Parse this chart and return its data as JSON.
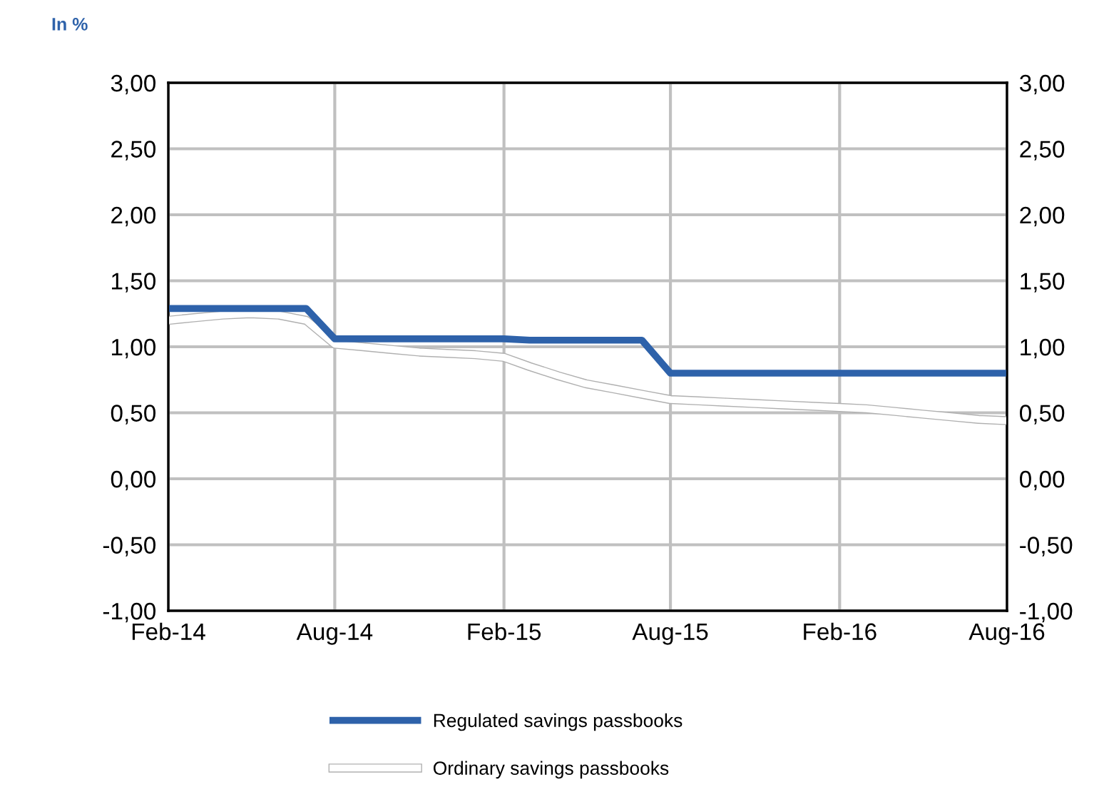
{
  "chart_data": {
    "type": "line",
    "title": "In %",
    "x": [
      "2014-02",
      "2014-03",
      "2014-04",
      "2014-05",
      "2014-06",
      "2014-07",
      "2014-08",
      "2014-09",
      "2014-10",
      "2014-11",
      "2014-12",
      "2015-01",
      "2015-02",
      "2015-03",
      "2015-04",
      "2015-05",
      "2015-06",
      "2015-07",
      "2015-08",
      "2015-09",
      "2015-10",
      "2015-11",
      "2015-12",
      "2016-01",
      "2016-02",
      "2016-03",
      "2016-04",
      "2016-05",
      "2016-06",
      "2016-07",
      "2016-08"
    ],
    "series": [
      {
        "name": "Regulated savings passbooks",
        "color": "#2e62aa",
        "values": [
          1.29,
          1.29,
          1.29,
          1.29,
          1.29,
          1.29,
          1.06,
          1.06,
          1.06,
          1.06,
          1.06,
          1.06,
          1.06,
          1.05,
          1.05,
          1.05,
          1.05,
          1.05,
          0.8,
          0.8,
          0.8,
          0.8,
          0.8,
          0.8,
          0.8,
          0.8,
          0.8,
          0.8,
          0.8,
          0.8,
          0.8
        ]
      },
      {
        "name": "Ordinary savings passbooks",
        "color": "#ffffff",
        "values": [
          1.2,
          1.22,
          1.24,
          1.25,
          1.24,
          1.2,
          1.02,
          1.0,
          0.98,
          0.96,
          0.95,
          0.94,
          0.92,
          0.85,
          0.78,
          0.72,
          0.68,
          0.64,
          0.6,
          0.59,
          0.58,
          0.57,
          0.56,
          0.55,
          0.54,
          0.53,
          0.51,
          0.49,
          0.47,
          0.45,
          0.44
        ]
      }
    ],
    "xlim": [
      "2014-02",
      "2016-08"
    ],
    "xticks": [
      {
        "value": "2014-02",
        "label": "Feb-14"
      },
      {
        "value": "2014-08",
        "label": "Aug-14"
      },
      {
        "value": "2015-02",
        "label": "Feb-15"
      },
      {
        "value": "2015-08",
        "label": "Aug-15"
      },
      {
        "value": "2016-02",
        "label": "Feb-16"
      },
      {
        "value": "2016-08",
        "label": "Aug-16"
      }
    ],
    "ylim": [
      -1,
      3
    ],
    "yticks": [
      {
        "value": -1,
        "label": "-1,00"
      },
      {
        "value": -0.5,
        "label": "-0,50"
      },
      {
        "value": 0,
        "label": "0,00"
      },
      {
        "value": 0.5,
        "label": "0,50"
      },
      {
        "value": 1,
        "label": "1,00"
      },
      {
        "value": 1.5,
        "label": "1,50"
      },
      {
        "value": 2,
        "label": "2,00"
      },
      {
        "value": 2.5,
        "label": "2,50"
      },
      {
        "value": 3,
        "label": "3,00"
      }
    ],
    "y2lim": [
      -1,
      3
    ],
    "y2ticks": [
      {
        "value": -1,
        "label": "-1,00"
      },
      {
        "value": -0.5,
        "label": "-0,50"
      },
      {
        "value": 0,
        "label": "0,00"
      },
      {
        "value": 0.5,
        "label": "0,50"
      },
      {
        "value": 1,
        "label": "1,00"
      },
      {
        "value": 1.5,
        "label": "1,50"
      },
      {
        "value": 2,
        "label": "2,00"
      },
      {
        "value": 2.5,
        "label": "2,50"
      },
      {
        "value": 3,
        "label": "3,00"
      }
    ],
    "grid": true,
    "legend": "bottom",
    "marker": "none",
    "line_style": "solid"
  }
}
